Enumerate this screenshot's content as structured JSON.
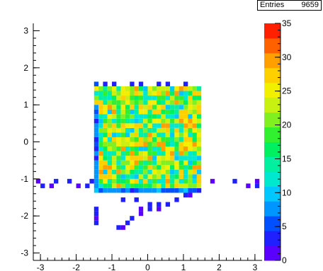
{
  "chart_data": {
    "type": "heatmap",
    "title": "",
    "xlabel": "",
    "ylabel": "",
    "xlim": [
      -3.2,
      3.2
    ],
    "ylim": [
      -3.2,
      3.2
    ],
    "zlim": [
      0,
      35
    ],
    "x_ticks": [
      "-3",
      "-2",
      "-1",
      "0",
      "1",
      "2",
      "3"
    ],
    "y_ticks": [
      "-3",
      "-2",
      "-1",
      "0",
      "1",
      "2",
      "3"
    ],
    "z_ticks": [
      "0",
      "5",
      "10",
      "15",
      "20",
      "25",
      "30",
      "35"
    ],
    "palette": [
      "#5a00ff",
      "#2020ff",
      "#0050ff",
      "#0096ff",
      "#00c8ff",
      "#00e8d0",
      "#00f0a0",
      "#00f060",
      "#30f030",
      "#80f020",
      "#c8f010",
      "#f0f000",
      "#ffd000",
      "#ffa000",
      "#ff6000",
      "#ff2000"
    ],
    "bin_size": 0.125,
    "grid": "off",
    "stats": {
      "label": "Entries",
      "value": "9659"
    },
    "cells_description": "dense block x in [-1.5,1.5], y in [-1.4,1.6], values mostly 10-30; sparse low-count tail below",
    "cells": [
      {
        "x": -1.5,
        "y": 1.5,
        "v": 5
      },
      {
        "x": -1.25,
        "y": 1.5,
        "v": 4
      },
      {
        "x": -1.0,
        "y": 1.5,
        "v": 3
      },
      {
        "x": -0.5,
        "y": 1.5,
        "v": 4
      },
      {
        "x": -0.25,
        "y": 1.5,
        "v": 3
      },
      {
        "x": 0.25,
        "y": 1.5,
        "v": 4
      },
      {
        "x": 0.5,
        "y": 1.5,
        "v": 3
      },
      {
        "x": 1.0,
        "y": 1.5,
        "v": 4
      },
      {
        "x": -2.25,
        "y": -1.125,
        "v": 3
      },
      {
        "x": -2.0,
        "y": -1.25,
        "v": 2
      },
      {
        "x": -1.75,
        "y": -1.25,
        "v": 3
      },
      {
        "x": -1.625,
        "y": -1.125,
        "v": 4
      },
      {
        "x": -2.75,
        "y": -1.25,
        "v": 2
      },
      {
        "x": -2.625,
        "y": -1.125,
        "v": 3
      },
      {
        "x": -3.0,
        "y": -1.25,
        "v": 3
      },
      {
        "x": -3.125,
        "y": -1.125,
        "v": 2
      },
      {
        "x": 1.75,
        "y": -1.125,
        "v": 2
      },
      {
        "x": 2.375,
        "y": -1.125,
        "v": 3
      },
      {
        "x": 2.75,
        "y": -1.25,
        "v": 2
      },
      {
        "x": 3.0,
        "y": -1.25,
        "v": 3
      },
      {
        "x": 3.0,
        "y": -1.125,
        "v": 2
      },
      {
        "x": -1.5,
        "y": -1.875,
        "v": 3
      },
      {
        "x": -1.5,
        "y": -2.0,
        "v": 3
      },
      {
        "x": -1.5,
        "y": -2.125,
        "v": 2
      },
      {
        "x": -1.5,
        "y": -2.25,
        "v": 3
      },
      {
        "x": -0.75,
        "y": -1.625,
        "v": 3
      },
      {
        "x": -0.375,
        "y": -1.625,
        "v": 3
      },
      {
        "x": -0.25,
        "y": -1.875,
        "v": 2
      },
      {
        "x": 0.0,
        "y": -1.75,
        "v": 3
      },
      {
        "x": 0.25,
        "y": -1.875,
        "v": 2
      },
      {
        "x": 0.5,
        "y": -1.75,
        "v": 3
      },
      {
        "x": 0.75,
        "y": -1.625,
        "v": 4
      },
      {
        "x": 1.0,
        "y": -1.5,
        "v": 3
      },
      {
        "x": 1.125,
        "y": -1.5,
        "v": 2
      },
      {
        "x": -0.5,
        "y": -2.125,
        "v": 3
      },
      {
        "x": -0.625,
        "y": -2.25,
        "v": 3
      },
      {
        "x": -0.75,
        "y": -2.375,
        "v": 2
      },
      {
        "x": -0.875,
        "y": -2.375,
        "v": 3
      },
      {
        "x": -0.25,
        "y": -2.0,
        "v": 2
      },
      {
        "x": 0.0,
        "y": -1.875,
        "v": 4
      },
      {
        "x": 0.25,
        "y": -1.75,
        "v": 3
      }
    ]
  }
}
